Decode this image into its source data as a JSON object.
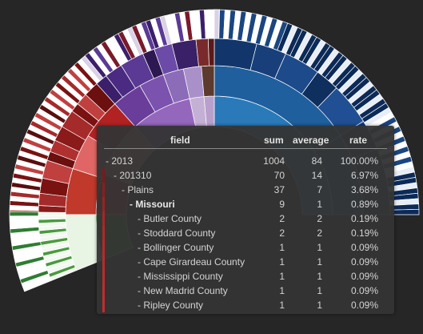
{
  "colors": {
    "background": "#262626",
    "tooltip_bg": "#343434",
    "accent_red": "#c0392b",
    "blue_inner": "#2a7ab9",
    "purple_inner": "#9467bd",
    "pink_inner": "#ff9896",
    "green_outer": "#4a9a3e"
  },
  "tooltip": {
    "headers": {
      "field": "field",
      "sum": "sum",
      "average": "average",
      "rate": "rate"
    },
    "rows": [
      {
        "field": "- 2013",
        "sum": "1004",
        "average": "84",
        "rate": "100.00%"
      },
      {
        "field": "- 201310",
        "sum": "70",
        "average": "14",
        "rate": "6.97%"
      },
      {
        "field": "- Plains",
        "sum": "37",
        "average": "7",
        "rate": "3.68%"
      },
      {
        "field": "- Missouri",
        "sum": "9",
        "average": "1",
        "rate": "0.89%"
      },
      {
        "field": "- Butler County",
        "sum": "2",
        "average": "2",
        "rate": "0.19%"
      },
      {
        "field": "- Stoddard County",
        "sum": "2",
        "average": "2",
        "rate": "0.19%"
      },
      {
        "field": "- Bollinger County",
        "sum": "1",
        "average": "1",
        "rate": "0.09%"
      },
      {
        "field": "- Cape Girardeau County",
        "sum": "1",
        "average": "1",
        "rate": "0.09%"
      },
      {
        "field": "- Mississippi County",
        "sum": "1",
        "average": "1",
        "rate": "0.09%"
      },
      {
        "field": "- New Madrid County",
        "sum": "1",
        "average": "1",
        "rate": "0.09%"
      },
      {
        "field": "- Ripley County",
        "sum": "1",
        "average": "1",
        "rate": "0.09%"
      }
    ]
  }
}
